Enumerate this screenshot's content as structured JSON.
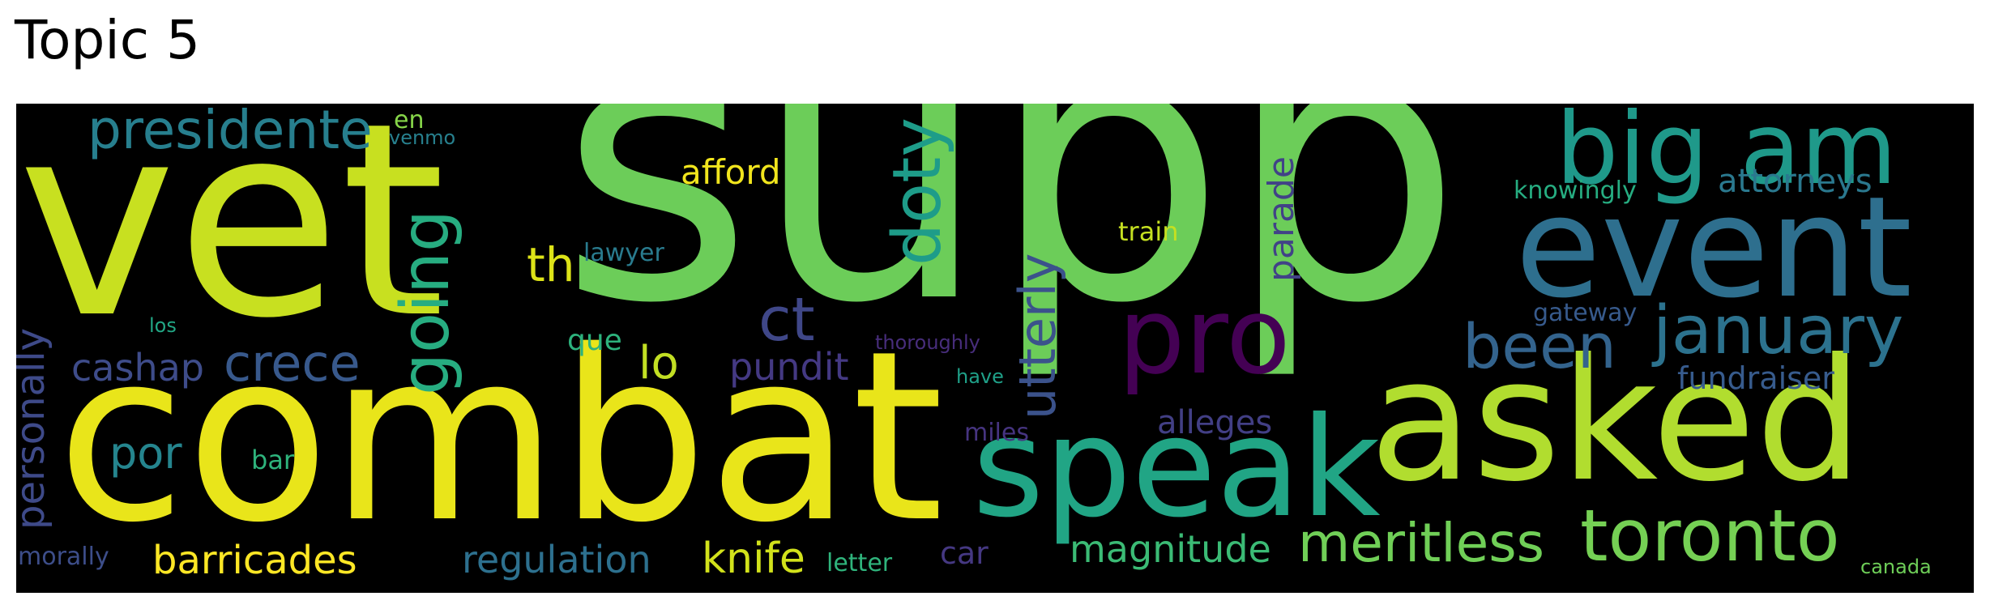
{
  "title": "Topic 5",
  "words": [
    {
      "key": "supp",
      "text": "supp",
      "color": "#6ccd59"
    },
    {
      "key": "vet",
      "text": "vet",
      "color": "#c8e020"
    },
    {
      "key": "combat",
      "text": "combat",
      "color": "#e9e51a"
    },
    {
      "key": "asked",
      "text": "asked",
      "color": "#b1dd2f"
    },
    {
      "key": "event",
      "text": "event",
      "color": "#2e6f8e"
    },
    {
      "key": "speak",
      "text": "speak",
      "color": "#21a585"
    },
    {
      "key": "pro",
      "text": "pro",
      "color": "#440154"
    },
    {
      "key": "big_am",
      "text": "big am",
      "color": "#1f998a"
    },
    {
      "key": "toronto",
      "text": "toronto",
      "color": "#75d054"
    },
    {
      "key": "january",
      "text": "january",
      "color": "#2c728e"
    },
    {
      "key": "going",
      "text": "going",
      "color": "#27ad81"
    },
    {
      "key": "doty",
      "text": "doty",
      "color": "#1e9c89"
    },
    {
      "key": "meritless",
      "text": "meritless",
      "color": "#70cf57"
    },
    {
      "key": "been",
      "text": "been",
      "color": "#33638d"
    },
    {
      "key": "presidente",
      "text": "presidente",
      "color": "#277f8e"
    },
    {
      "key": "ct",
      "text": "ct",
      "color": "#3f4788"
    },
    {
      "key": "crece",
      "text": "crece",
      "color": "#38598c"
    },
    {
      "key": "utterly",
      "text": "utterly",
      "color": "#3b528b"
    },
    {
      "key": "barricades",
      "text": "barricades",
      "color": "#fde725"
    },
    {
      "key": "magnitude",
      "text": "magnitude",
      "color": "#3bbb75"
    },
    {
      "key": "regulation",
      "text": "regulation",
      "color": "#2d708e"
    },
    {
      "key": "personally",
      "text": "personally",
      "color": "#3e4a89"
    },
    {
      "key": "cashap",
      "text": "cashap",
      "color": "#3e4c8a"
    },
    {
      "key": "por",
      "text": "por",
      "color": "#25858e"
    },
    {
      "key": "knife",
      "text": "knife",
      "color": "#d2e21b"
    },
    {
      "key": "th",
      "text": "th",
      "color": "#dde318"
    },
    {
      "key": "lo",
      "text": "lo",
      "color": "#c2df23"
    },
    {
      "key": "pundit",
      "text": "pundit",
      "color": "#443983"
    },
    {
      "key": "parade",
      "text": "parade",
      "color": "#414287"
    },
    {
      "key": "afford",
      "text": "afford",
      "color": "#f1e51d"
    },
    {
      "key": "attorneys",
      "text": "attorneys",
      "color": "#2a788e"
    },
    {
      "key": "fundraiser",
      "text": "fundraiser",
      "color": "#375b8d"
    },
    {
      "key": "alleges",
      "text": "alleges",
      "color": "#423f85"
    },
    {
      "key": "car",
      "text": "car",
      "color": "#453882"
    },
    {
      "key": "knowingly",
      "text": "knowingly",
      "color": "#26ad81"
    },
    {
      "key": "morally",
      "text": "morally",
      "color": "#3d4e8a"
    },
    {
      "key": "que",
      "text": "que",
      "color": "#2db27d"
    },
    {
      "key": "train",
      "text": "train",
      "color": "#c5e021"
    },
    {
      "key": "lawyer",
      "text": "lawyer",
      "color": "#297b8e"
    },
    {
      "key": "gateway",
      "text": "gateway",
      "color": "#375a8c"
    },
    {
      "key": "letter",
      "text": "letter",
      "color": "#2fb47c"
    },
    {
      "key": "miles",
      "text": "miles",
      "color": "#463480"
    },
    {
      "key": "en",
      "text": "en",
      "color": "#86d549"
    },
    {
      "key": "venmo",
      "text": "venmo",
      "color": "#27808e"
    },
    {
      "key": "canada",
      "text": "canada",
      "color": "#6ece58"
    },
    {
      "key": "bar",
      "text": "bar",
      "color": "#2eb37c"
    },
    {
      "key": "los",
      "text": "los",
      "color": "#22a785"
    },
    {
      "key": "thoroughly",
      "text": "thoroughly",
      "color": "#472d7b"
    },
    {
      "key": "have",
      "text": "have",
      "color": "#1fa088"
    }
  ]
}
